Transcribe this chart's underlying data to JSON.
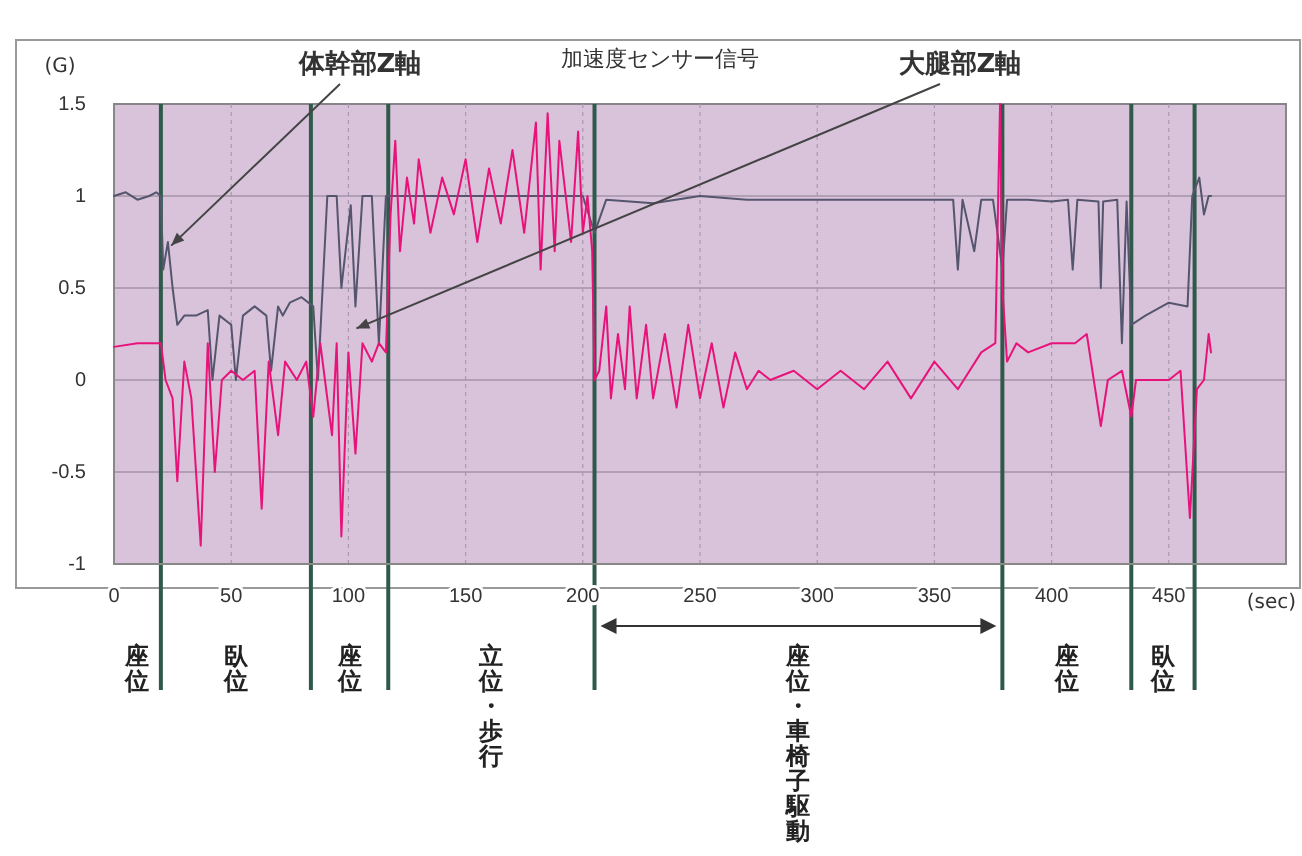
{
  "chart_data": {
    "type": "line",
    "title": "加速度センサー信号",
    "xlabel": "(sec)",
    "ylabel": "(G)",
    "xlim": [
      0,
      500
    ],
    "xticks": [
      0,
      50,
      100,
      150,
      200,
      250,
      300,
      350,
      400,
      450
    ],
    "ylim": [
      -1,
      1.5
    ],
    "yticks": [
      -1,
      -0.5,
      0,
      0.5,
      1,
      1.5
    ],
    "grid": true,
    "marker": "none",
    "line_style": "solid",
    "series": [
      {
        "name": "体幹部Z軸",
        "color": "#55556e",
        "x": [
          0,
          5,
          10,
          15,
          18,
          20,
          21,
          23,
          25,
          27,
          30,
          35,
          40,
          42,
          45,
          50,
          52,
          55,
          60,
          65,
          67,
          70,
          72,
          75,
          80,
          85,
          87,
          89,
          91,
          95,
          97,
          101,
          103,
          106,
          110,
          113,
          116,
          120,
          140,
          160,
          180,
          200,
          205,
          210,
          230,
          250,
          270,
          290,
          310,
          330,
          350,
          358,
          360,
          362,
          367,
          370,
          375,
          379,
          381,
          390,
          400,
          407,
          409,
          411,
          420,
          421,
          422,
          428,
          430,
          432,
          434,
          440,
          450,
          458,
          460,
          463,
          465,
          467,
          468
        ],
        "values": [
          1.0,
          1.02,
          0.98,
          1.0,
          1.02,
          1.0,
          0.6,
          0.75,
          0.5,
          0.3,
          0.35,
          0.35,
          0.38,
          0.0,
          0.35,
          0.3,
          0.0,
          0.35,
          0.4,
          0.35,
          0.05,
          0.4,
          0.35,
          0.42,
          0.45,
          0.4,
          0.0,
          0.5,
          1.0,
          1.0,
          0.5,
          0.95,
          0.4,
          1.0,
          1.0,
          0.2,
          1.0,
          1.0,
          1.0,
          1.0,
          1.0,
          1.0,
          0.8,
          0.98,
          0.96,
          1.0,
          0.98,
          0.98,
          0.98,
          0.98,
          0.98,
          0.98,
          0.6,
          0.98,
          0.7,
          0.98,
          0.98,
          0.6,
          0.98,
          0.98,
          0.97,
          0.98,
          0.6,
          0.98,
          0.97,
          0.5,
          0.97,
          0.98,
          0.2,
          0.97,
          0.3,
          0.35,
          0.42,
          0.4,
          1.0,
          1.1,
          0.9,
          1.0,
          1.0
        ]
      },
      {
        "name": "大腿部Z軸",
        "color": "#e8137a",
        "x": [
          0,
          10,
          18,
          20,
          22,
          25,
          27,
          30,
          33,
          37,
          40,
          43,
          46,
          50,
          55,
          60,
          63,
          66,
          70,
          73,
          78,
          82,
          85,
          88,
          90,
          93,
          95,
          97,
          100,
          103,
          106,
          110,
          113,
          116,
          118,
          120,
          122,
          125,
          128,
          130,
          135,
          140,
          145,
          150,
          155,
          160,
          165,
          170,
          175,
          180,
          182,
          185,
          188,
          190,
          195,
          198,
          200,
          202,
          204,
          205,
          207,
          210,
          212,
          215,
          218,
          220,
          223,
          227,
          230,
          235,
          240,
          245,
          250,
          255,
          260,
          265,
          270,
          275,
          280,
          290,
          300,
          310,
          320,
          330,
          340,
          350,
          360,
          370,
          376,
          378,
          379,
          381,
          385,
          390,
          400,
          410,
          415,
          418,
          421,
          424,
          430,
          434,
          436,
          440,
          450,
          455,
          459,
          462,
          465,
          467,
          468
        ],
        "values": [
          0.18,
          0.2,
          0.2,
          0.2,
          0.0,
          -0.1,
          -0.55,
          0.1,
          -0.1,
          -0.9,
          0.2,
          -0.5,
          0.0,
          0.05,
          0.0,
          0.05,
          -0.7,
          0.1,
          -0.3,
          0.1,
          0.0,
          0.1,
          -0.2,
          0.2,
          0.0,
          -0.3,
          0.2,
          -0.85,
          0.15,
          -0.4,
          0.2,
          0.1,
          0.2,
          0.15,
          0.9,
          1.3,
          0.7,
          1.1,
          0.85,
          1.2,
          0.8,
          1.1,
          0.9,
          1.2,
          0.75,
          1.15,
          0.85,
          1.25,
          0.8,
          1.4,
          0.6,
          1.45,
          0.7,
          1.3,
          0.75,
          1.35,
          0.8,
          1.0,
          0.7,
          0.0,
          0.05,
          0.4,
          -0.1,
          0.25,
          -0.05,
          0.4,
          -0.1,
          0.3,
          -0.1,
          0.25,
          -0.15,
          0.3,
          -0.1,
          0.2,
          -0.15,
          0.15,
          -0.05,
          0.05,
          0.0,
          0.05,
          -0.05,
          0.05,
          -0.05,
          0.1,
          -0.1,
          0.1,
          -0.05,
          0.15,
          0.2,
          1.5,
          0.5,
          0.1,
          0.2,
          0.15,
          0.2,
          0.2,
          0.25,
          0.0,
          -0.25,
          0.0,
          0.05,
          -0.2,
          0.0,
          0.0,
          0.0,
          0.05,
          -0.75,
          -0.05,
          0.0,
          0.25,
          0.15
        ]
      }
    ],
    "ref_lines": [
      {
        "axis": "x",
        "value": 20,
        "color": "#2f5a4a"
      },
      {
        "axis": "x",
        "value": 84,
        "color": "#2f5a4a"
      },
      {
        "axis": "x",
        "value": 117,
        "color": "#2f5a4a"
      },
      {
        "axis": "x",
        "value": 205,
        "color": "#2f5a4a"
      },
      {
        "axis": "x",
        "value": 379,
        "color": "#2f5a4a"
      },
      {
        "axis": "x",
        "value": 434,
        "color": "#2f5a4a"
      },
      {
        "axis": "x",
        "value": 461,
        "color": "#2f5a4a"
      }
    ],
    "annotations": [
      "座位",
      "臥位",
      "座位",
      "立位・歩行",
      "座位・車椅子駆動",
      "座位",
      "臥位"
    ]
  }
}
